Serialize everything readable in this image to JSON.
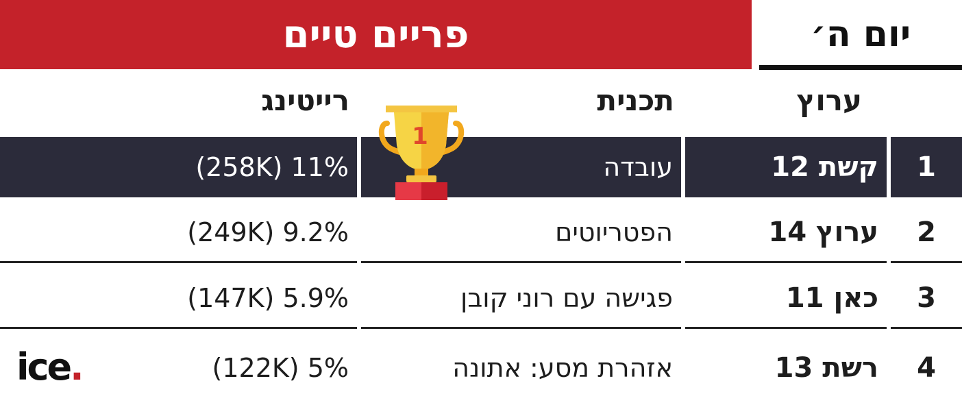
{
  "banner": {
    "title": "פריים טיים"
  },
  "day": {
    "label": "יום ה׳"
  },
  "headers": {
    "channel": "ערוץ",
    "program": "תכנית",
    "rating": "רייטינג"
  },
  "trophy": {
    "icon": "trophy-icon",
    "number": "1"
  },
  "rows": [
    {
      "rank": "1",
      "channel": "קשת 12",
      "program": "עובדה",
      "rating": "(258K) 11%"
    },
    {
      "rank": "2",
      "channel": "ערוץ 14",
      "program": "הפטריוטים",
      "rating": "(249K) 9.2%"
    },
    {
      "rank": "3",
      "channel": "כאן 11",
      "program": "פגישה עם רוני קובן",
      "rating": "(147K) 5.9%"
    },
    {
      "rank": "4",
      "channel": "רשת 13",
      "program": "אזהרת מסע: אתונה",
      "rating": "(122K) 5%"
    }
  ],
  "logo": {
    "text": "ice",
    "dot": "."
  },
  "colors": {
    "accent": "#c4222a",
    "dark_row": "#2b2b3a"
  }
}
